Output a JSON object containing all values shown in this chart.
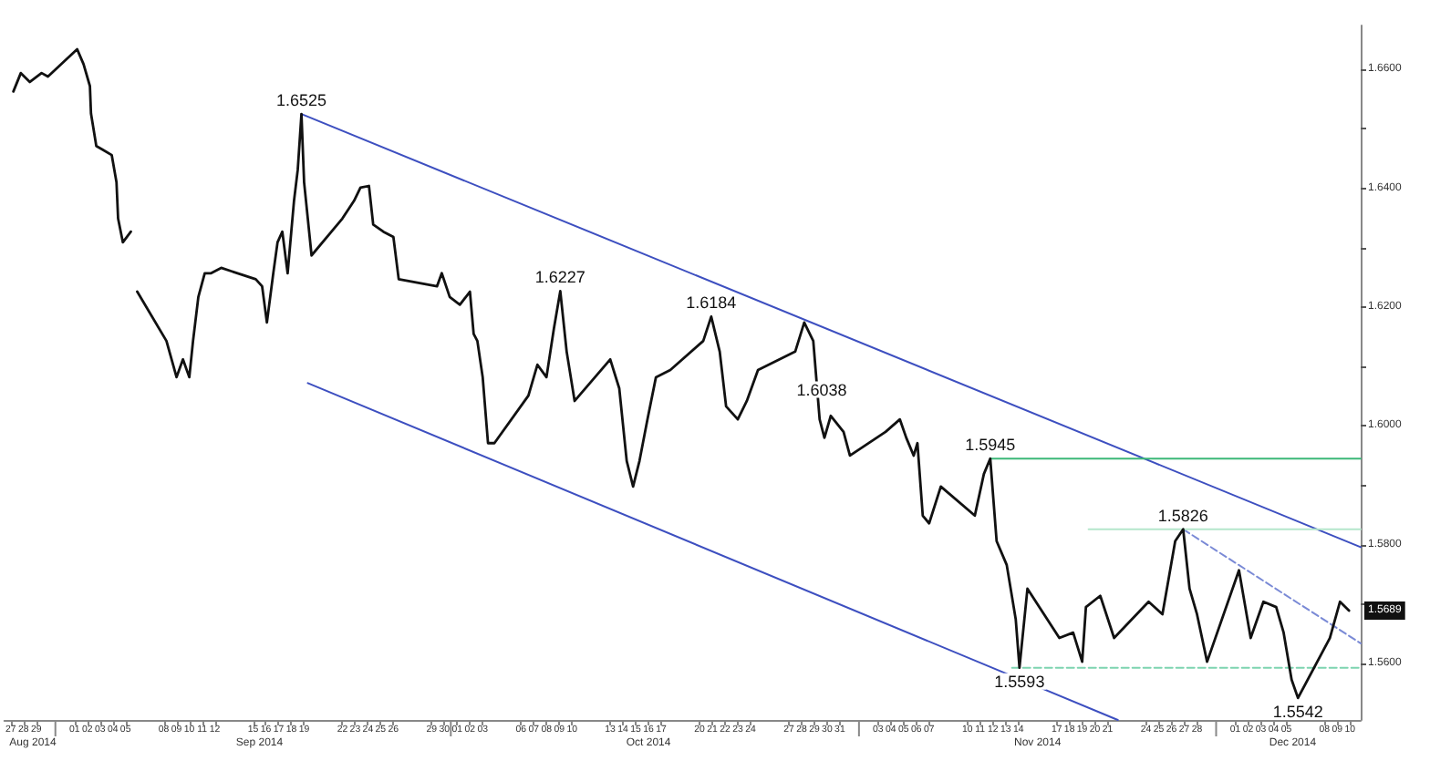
{
  "chart_data": {
    "type": "line",
    "grid": false,
    "marker": "none",
    "xlim": [
      "2014-08-26T12:00",
      "2014-12-10T20:00"
    ],
    "ylim": [
      1.5505,
      1.6674
    ],
    "xticks": [
      {
        "value": "2014-08-27",
        "label": "27"
      },
      {
        "value": "2014-08-28",
        "label": "28"
      },
      {
        "value": "2014-08-29",
        "label": "29"
      },
      {
        "value": "2014-09-01",
        "label": "01"
      },
      {
        "value": "2014-09-02",
        "label": "02"
      },
      {
        "value": "2014-09-03",
        "label": "03"
      },
      {
        "value": "2014-09-04",
        "label": "04"
      },
      {
        "value": "2014-09-05",
        "label": "05"
      },
      {
        "value": "2014-09-08",
        "label": "08"
      },
      {
        "value": "2014-09-09",
        "label": "09"
      },
      {
        "value": "2014-09-10",
        "label": "10"
      },
      {
        "value": "2014-09-11",
        "label": "11"
      },
      {
        "value": "2014-09-12",
        "label": "12"
      },
      {
        "value": "2014-09-15",
        "label": "15"
      },
      {
        "value": "2014-09-16",
        "label": "16"
      },
      {
        "value": "2014-09-17",
        "label": "17"
      },
      {
        "value": "2014-09-18",
        "label": "18"
      },
      {
        "value": "2014-09-19",
        "label": "19"
      },
      {
        "value": "2014-09-22",
        "label": "22"
      },
      {
        "value": "2014-09-23",
        "label": "23"
      },
      {
        "value": "2014-09-24",
        "label": "24"
      },
      {
        "value": "2014-09-25",
        "label": "25"
      },
      {
        "value": "2014-09-26",
        "label": "26"
      },
      {
        "value": "2014-09-29",
        "label": "29"
      },
      {
        "value": "2014-09-30",
        "label": "30"
      },
      {
        "value": "2014-10-01",
        "label": "01"
      },
      {
        "value": "2014-10-02",
        "label": "02"
      },
      {
        "value": "2014-10-03",
        "label": "03"
      },
      {
        "value": "2014-10-06",
        "label": "06"
      },
      {
        "value": "2014-10-07",
        "label": "07"
      },
      {
        "value": "2014-10-08",
        "label": "08"
      },
      {
        "value": "2014-10-09",
        "label": "09"
      },
      {
        "value": "2014-10-10",
        "label": "10"
      },
      {
        "value": "2014-10-13",
        "label": "13"
      },
      {
        "value": "2014-10-14",
        "label": "14"
      },
      {
        "value": "2014-10-15",
        "label": "15"
      },
      {
        "value": "2014-10-16",
        "label": "16"
      },
      {
        "value": "2014-10-17",
        "label": "17"
      },
      {
        "value": "2014-10-20",
        "label": "20"
      },
      {
        "value": "2014-10-21",
        "label": "21"
      },
      {
        "value": "2014-10-22",
        "label": "22"
      },
      {
        "value": "2014-10-23",
        "label": "23"
      },
      {
        "value": "2014-10-24",
        "label": "24"
      },
      {
        "value": "2014-10-27",
        "label": "27"
      },
      {
        "value": "2014-10-28",
        "label": "28"
      },
      {
        "value": "2014-10-29",
        "label": "29"
      },
      {
        "value": "2014-10-30",
        "label": "30"
      },
      {
        "value": "2014-10-31",
        "label": "31"
      },
      {
        "value": "2014-11-03",
        "label": "03"
      },
      {
        "value": "2014-11-04",
        "label": "04"
      },
      {
        "value": "2014-11-05",
        "label": "05"
      },
      {
        "value": "2014-11-06",
        "label": "06"
      },
      {
        "value": "2014-11-07",
        "label": "07"
      },
      {
        "value": "2014-11-10",
        "label": "10"
      },
      {
        "value": "2014-11-11",
        "label": "11"
      },
      {
        "value": "2014-11-12",
        "label": "12"
      },
      {
        "value": "2014-11-13",
        "label": "13"
      },
      {
        "value": "2014-11-14",
        "label": "14"
      },
      {
        "value": "2014-11-17",
        "label": "17"
      },
      {
        "value": "2014-11-18",
        "label": "18"
      },
      {
        "value": "2014-11-19",
        "label": "19"
      },
      {
        "value": "2014-11-20",
        "label": "20"
      },
      {
        "value": "2014-11-21",
        "label": "21"
      },
      {
        "value": "2014-11-24",
        "label": "24"
      },
      {
        "value": "2014-11-25",
        "label": "25"
      },
      {
        "value": "2014-11-26",
        "label": "26"
      },
      {
        "value": "2014-11-27",
        "label": "27"
      },
      {
        "value": "2014-11-28",
        "label": "28"
      },
      {
        "value": "2014-12-01",
        "label": "01"
      },
      {
        "value": "2014-12-02",
        "label": "02"
      },
      {
        "value": "2014-12-03",
        "label": "03"
      },
      {
        "value": "2014-12-04",
        "label": "04"
      },
      {
        "value": "2014-12-05",
        "label": "05"
      },
      {
        "value": "2014-12-08",
        "label": "08"
      },
      {
        "value": "2014-12-09",
        "label": "09"
      },
      {
        "value": "2014-12-10",
        "label": "10"
      }
    ],
    "yticks": [
      {
        "value": 1.56,
        "label": "1.5600"
      },
      {
        "value": 1.57,
        "label": null
      },
      {
        "value": 1.58,
        "label": "1.5800"
      },
      {
        "value": 1.59,
        "label": null
      },
      {
        "value": 1.6,
        "label": "1.6000"
      },
      {
        "value": 1.61,
        "label": null
      },
      {
        "value": 1.62,
        "label": "1.6200"
      },
      {
        "value": 1.63,
        "label": null
      },
      {
        "value": 1.64,
        "label": "1.6400"
      },
      {
        "value": 1.65,
        "label": null
      },
      {
        "value": 1.66,
        "label": "1.6600"
      }
    ],
    "series": [
      {
        "color": "#111111",
        "x": [
          "2014-08-27T05:00",
          "2014-08-27T19:00",
          "2014-08-28T12:00",
          "2014-08-29T10:00",
          "2014-08-29T22:00",
          "2014-09-01T05:00",
          "2014-09-01T17:00",
          "2014-09-02T05:00",
          "2014-09-02T07:00",
          "2014-09-02T17:00",
          "2014-09-03T05:00",
          "2014-09-03T22:00",
          "2014-09-04T07:00",
          "2014-09-04T10:00",
          "2014-09-04T19:00",
          "2014-09-05T10:00",
          "2014-09-05T17:00",
          "2014-09-05T22:00",
          "2014-09-08T05:00",
          "2014-09-09T00:00",
          "2014-09-09T12:00",
          "2014-09-10T00:00",
          "2014-09-10T07:00",
          "2014-09-10T17:00",
          "2014-09-11T05:00",
          "2014-09-11T17:00",
          "2014-09-12T12:00",
          "2014-09-15T05:00",
          "2014-09-15T17:00",
          "2014-09-16T02:00",
          "2014-09-16T14:00",
          "2014-09-16T22:00",
          "2014-09-17T07:00",
          "2014-09-17T17:00",
          "2014-09-18T05:00",
          "2014-09-18T12:00",
          "2014-09-18T19:00",
          "2014-09-19T00:00",
          "2014-09-19T14:00",
          "2014-09-22T00:00",
          "2014-09-22T22:00",
          "2014-09-23T10:00",
          "2014-09-24T02:00",
          "2014-09-24T10:00",
          "2014-09-25T05:00",
          "2014-09-26T00:00",
          "2014-09-26T10:00",
          "2014-09-29T10:00",
          "2014-09-29T19:00",
          "2014-09-30T10:00",
          "2014-10-01T05:00",
          "2014-10-02T00:00",
          "2014-10-02T07:00",
          "2014-10-02T14:00",
          "2014-10-03T00:00",
          "2014-10-03T10:00",
          "2014-10-03T22:00",
          "2014-10-06T14:00",
          "2014-10-07T07:00",
          "2014-10-08T00:00",
          "2014-10-08T14:00",
          "2014-10-09T02:00",
          "2014-10-09T14:00",
          "2014-10-10T05:00",
          "2014-10-13T00:00",
          "2014-10-13T17:00",
          "2014-10-14T07:00",
          "2014-10-14T19:00",
          "2014-10-15T07:00",
          "2014-10-15T22:00",
          "2014-10-16T14:00",
          "2014-10-17T17:00",
          "2014-10-20T07:00",
          "2014-10-20T22:00",
          "2014-10-21T14:00",
          "2014-10-22T02:00",
          "2014-10-23T00:00",
          "2014-10-23T17:00",
          "2014-10-24T14:00",
          "2014-10-27T12:00",
          "2014-10-28T05:00",
          "2014-10-28T22:00",
          "2014-10-29T10:00",
          "2014-10-29T19:00",
          "2014-10-30T07:00",
          "2014-10-31T07:00",
          "2014-10-31T19:00",
          "2014-11-03T14:00",
          "2014-11-04T17:00",
          "2014-11-05T05:00",
          "2014-11-05T19:00",
          "2014-11-06T02:00",
          "2014-11-06T12:00",
          "2014-11-07T00:00",
          "2014-11-07T22:00",
          "2014-11-10T14:00",
          "2014-11-11T07:00",
          "2014-11-11T19:00",
          "2014-11-12T07:00",
          "2014-11-13T02:00",
          "2014-11-13T19:00",
          "2014-11-14T02:00",
          "2014-11-14T17:00",
          "2014-11-17T05:00",
          "2014-11-18T07:00",
          "2014-11-19T00:00",
          "2014-11-19T07:00",
          "2014-11-20T10:00",
          "2014-11-21T12:00",
          "2014-11-24T05:00",
          "2014-11-25T07:00",
          "2014-11-26T07:00",
          "2014-11-26T22:00",
          "2014-11-27T10:00",
          "2014-11-28T00:00",
          "2014-11-28T19:00",
          "2014-12-01T07:00",
          "2014-12-02T05:00",
          "2014-12-03T05:00",
          "2014-12-04T05:00",
          "2014-12-04T19:00",
          "2014-12-05T10:00",
          "2014-12-05T22:00",
          "2014-12-08T10:00",
          "2014-12-09T05:00",
          "2014-12-09T22:00"
        ],
        "values": [
          1.6563,
          1.6594,
          1.6579,
          1.6594,
          1.6588,
          1.6634,
          1.6609,
          1.6572,
          1.6526,
          1.6471,
          1.6465,
          1.6456,
          1.641,
          1.6349,
          1.6309,
          1.6327,
          null,
          1.6226,
          1.6143,
          1.6082,
          1.6112,
          1.6082,
          1.6143,
          1.6217,
          1.6257,
          1.6257,
          1.6266,
          1.6247,
          1.6235,
          1.6174,
          1.6257,
          1.6309,
          1.6327,
          1.6257,
          1.6379,
          1.6431,
          1.6525,
          1.641,
          1.6287,
          1.6349,
          1.6379,
          1.6401,
          1.6404,
          1.6339,
          1.6327,
          1.6318,
          1.6247,
          1.6235,
          1.6257,
          1.6217,
          1.6204,
          1.6226,
          1.6155,
          1.6143,
          1.6082,
          1.5971,
          1.5971,
          1.6051,
          1.6103,
          1.6082,
          1.6164,
          1.6227,
          1.6125,
          1.6042,
          1.6112,
          1.6063,
          1.5941,
          1.5898,
          1.5941,
          1.6011,
          1.6082,
          1.6094,
          1.6143,
          1.6184,
          1.6125,
          1.6033,
          1.6011,
          1.6042,
          1.6094,
          1.6125,
          1.6174,
          1.6143,
          1.6011,
          1.598,
          1.6017,
          1.599,
          1.595,
          1.599,
          1.6011,
          1.598,
          1.595,
          1.5971,
          1.5849,
          1.5836,
          1.5898,
          1.5849,
          1.5919,
          1.5945,
          1.5806,
          1.5766,
          1.5674,
          1.5593,
          1.5726,
          1.5643,
          1.5652,
          1.5603,
          1.5695,
          1.5714,
          1.5643,
          1.5704,
          1.5683,
          1.5806,
          1.5826,
          1.5726,
          1.5683,
          1.5603,
          1.5757,
          1.5643,
          1.5704,
          1.5695,
          1.5652,
          1.5573,
          1.5542,
          1.5643,
          1.5704,
          1.5689
        ]
      },
      {
        "color": "#3d4fc0",
        "x": [
          "2014-09-18T19:00",
          "2014-12-10T20:00"
        ],
        "values": [
          1.6525,
          1.5796
        ]
      },
      {
        "color": "#3d4fc0",
        "x": [
          "2014-09-19T07:00",
          "2014-11-21T19:00"
        ],
        "values": [
          1.6072,
          1.5505
        ]
      },
      {
        "color": "#7a8ad6",
        "line_style": "dashed",
        "x": [
          "2014-11-26T22:00",
          "2014-12-10T20:00"
        ],
        "values": [
          1.5826,
          1.5634
        ]
      },
      {
        "color": "#3cb878",
        "x": [
          "2014-11-11T19:00",
          "2014-12-10T20:00"
        ],
        "values": [
          1.5945,
          1.5945
        ]
      },
      {
        "color": "#b5e6cc",
        "x": [
          "2014-11-19T12:00",
          "2014-12-10T20:00"
        ],
        "values": [
          1.5826,
          1.5826
        ]
      },
      {
        "color": "#7dd4b0",
        "line_style": "dashed",
        "x": [
          "2014-11-13T12:00",
          "2014-12-10T20:00"
        ],
        "values": [
          1.5593,
          1.5593
        ]
      }
    ],
    "annotations": [
      {
        "text": "1.6525",
        "x": "2014-09-18T19:00",
        "y": 1.6525
      },
      {
        "text": "1.6227",
        "x": "2014-10-09T02:00",
        "y": 1.6227
      },
      {
        "text": "1.6184",
        "x": "2014-10-20T22:00",
        "y": 1.6184
      },
      {
        "text": "1.6038",
        "x": "2014-10-29T14:00",
        "y": 1.6038
      },
      {
        "text": "1.5945",
        "x": "2014-11-11T19:00",
        "y": 1.5945
      },
      {
        "text": "1.5826",
        "x": "2014-11-26T22:00",
        "y": 1.5826
      },
      {
        "text": "1.5593",
        "x": "2014-11-14T02:00",
        "y": 1.5593
      },
      {
        "text": "1.5542",
        "x": "2014-12-05T22:00",
        "y": 1.5542
      },
      {
        "text": "1.5689",
        "y": 1.5689
      },
      "Aug 2014",
      "Sep 2014",
      "Oct 2014",
      "Nov 2014",
      "Dec 2014"
    ]
  }
}
